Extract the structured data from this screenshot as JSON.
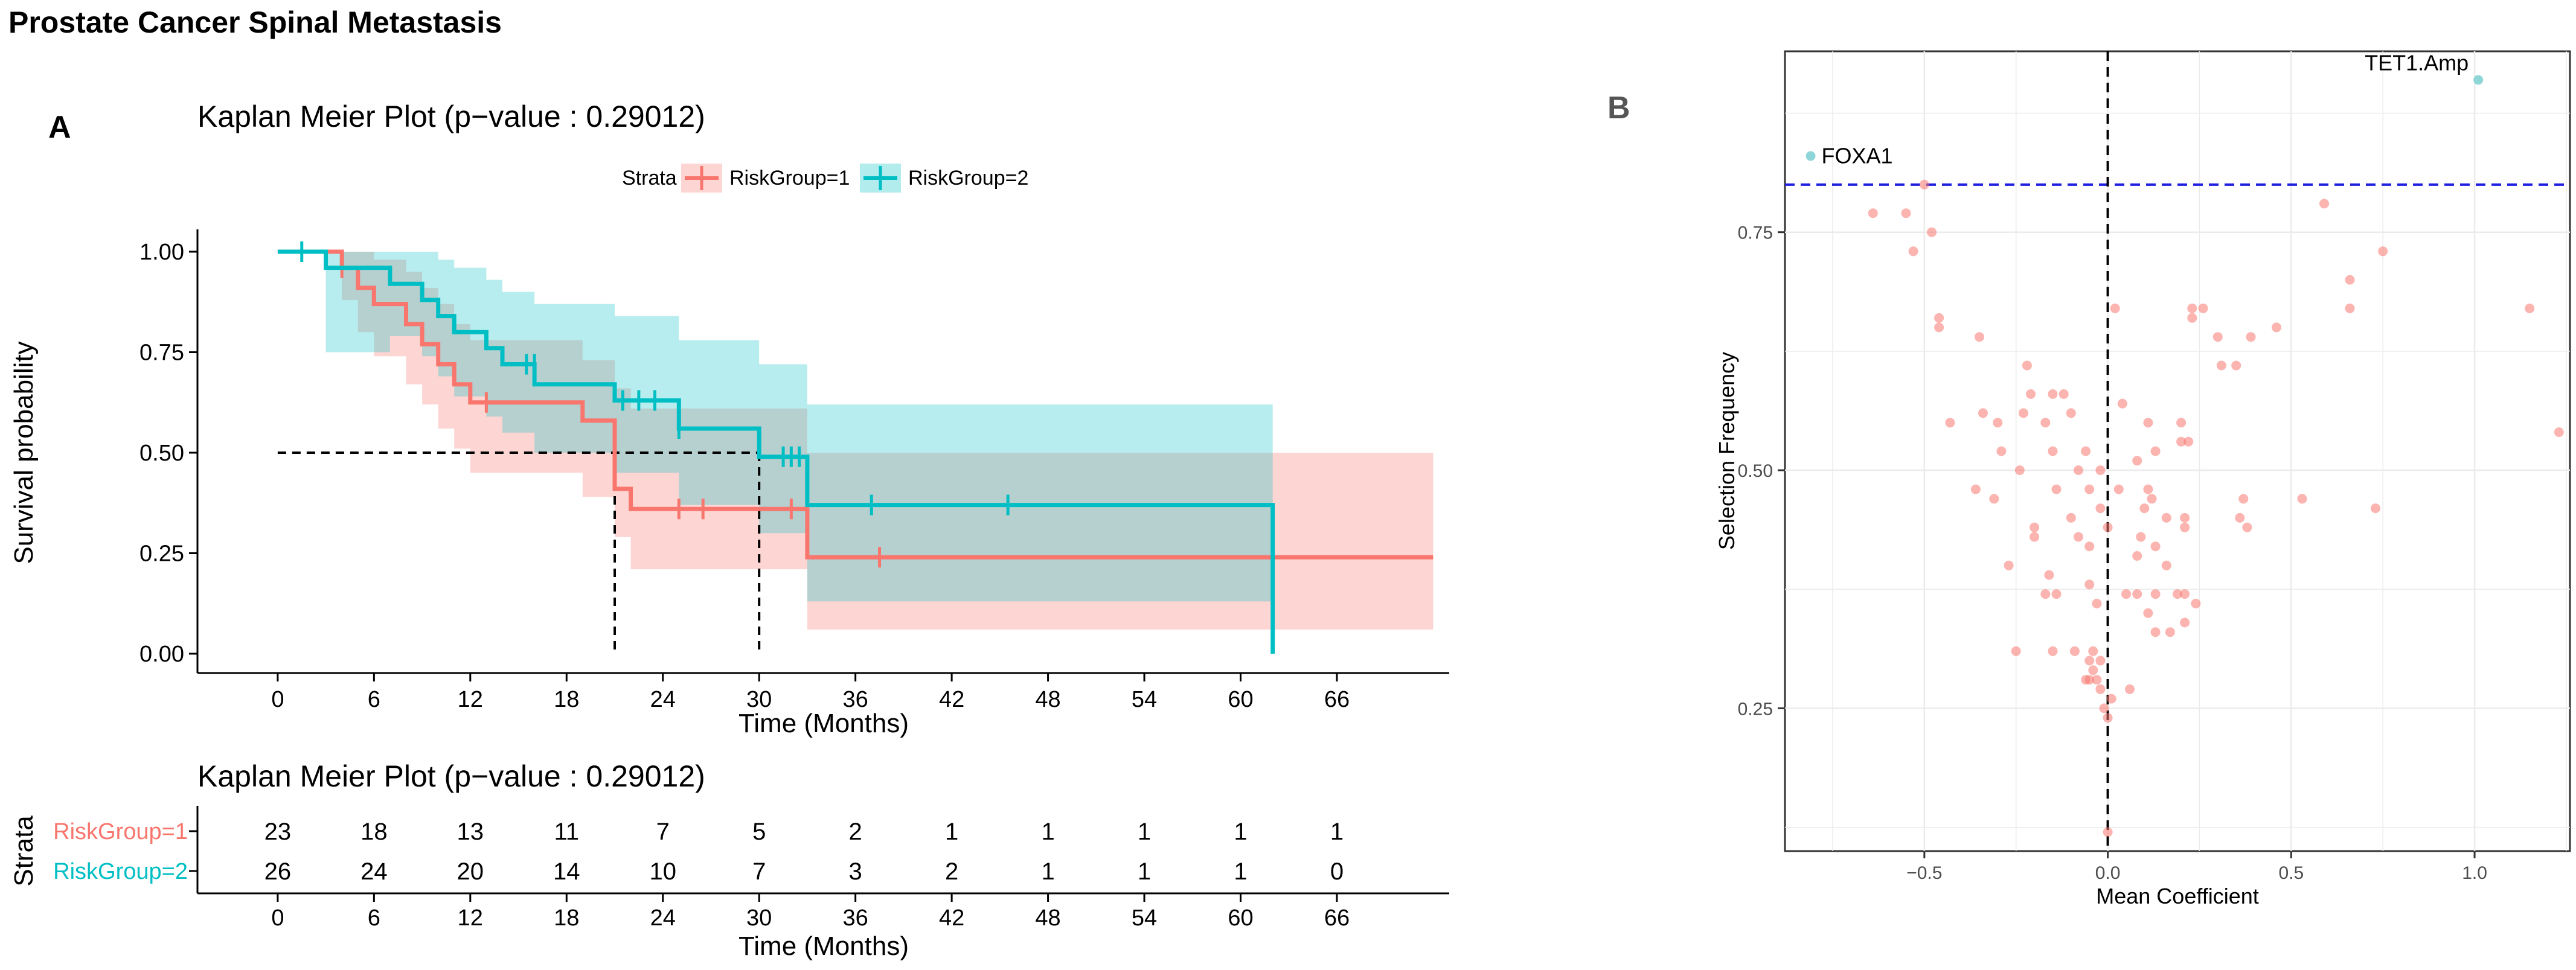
{
  "figure_title": "Prostate Cancer Spinal Metastasis",
  "panel_a_letter": "A",
  "panel_b_letter": "B",
  "colors": {
    "group1": "#F8766D",
    "group2": "#00BFC4",
    "overlap": "#C6C6C6",
    "median": "#000000",
    "threshold": "#1F1FE0",
    "highlight": "#8FD6D8"
  },
  "chart_data": [
    {
      "type": "line",
      "subtype": "kaplan-meier",
      "title": "Kaplan Meier Plot (p−value : 0.29012)",
      "xlabel": "Time (Months)",
      "ylabel": "Survival probability",
      "xlim": [
        -5,
        73
      ],
      "ylim": [
        0,
        1
      ],
      "x_ticks": [
        0,
        6,
        12,
        18,
        24,
        30,
        36,
        42,
        48,
        54,
        60,
        66
      ],
      "y_ticks": [
        0.0,
        0.25,
        0.5,
        0.75,
        1.0
      ],
      "y_tick_labels": [
        "0.00",
        "0.25",
        "0.50",
        "0.75",
        "1.00"
      ],
      "legend": {
        "title": "Strata",
        "position": "top",
        "entries": [
          "RiskGroup=1",
          "RiskGroup=2"
        ]
      },
      "median_survival": [
        {
          "group": "RiskGroup=1",
          "time": 21
        },
        {
          "group": "RiskGroup=2",
          "time": 30
        }
      ],
      "series": [
        {
          "name": "RiskGroup=1",
          "color": "#F8766D",
          "steps": [
            [
              0,
              1.0
            ],
            [
              4,
              0.96
            ],
            [
              5,
              0.91
            ],
            [
              6,
              0.87
            ],
            [
              8,
              0.82
            ],
            [
              9,
              0.77
            ],
            [
              10,
              0.72
            ],
            [
              11,
              0.67
            ],
            [
              12,
              0.625
            ],
            [
              19,
              0.58
            ],
            [
              21,
              0.51
            ],
            [
              21,
              0.41
            ],
            [
              22,
              0.36
            ],
            [
              33,
              0.24
            ],
            [
              72,
              0.24
            ]
          ],
          "ci_upper": [
            [
              0,
              1.0
            ],
            [
              4,
              1.0
            ],
            [
              5,
              1.0
            ],
            [
              6,
              0.98
            ],
            [
              8,
              0.95
            ],
            [
              9,
              0.91
            ],
            [
              10,
              0.87
            ],
            [
              11,
              0.82
            ],
            [
              12,
              0.78
            ],
            [
              19,
              0.73
            ],
            [
              21,
              0.66
            ],
            [
              22,
              0.61
            ],
            [
              33,
              0.5
            ],
            [
              72,
              0.5
            ]
          ],
          "ci_lower": [
            [
              0,
              1.0
            ],
            [
              4,
              0.88
            ],
            [
              5,
              0.8
            ],
            [
              6,
              0.74
            ],
            [
              8,
              0.67
            ],
            [
              9,
              0.62
            ],
            [
              10,
              0.56
            ],
            [
              11,
              0.51
            ],
            [
              12,
              0.45
            ],
            [
              19,
              0.39
            ],
            [
              21,
              0.29
            ],
            [
              22,
              0.21
            ],
            [
              33,
              0.06
            ],
            [
              72,
              0.06
            ]
          ],
          "censored": [
            [
              4,
              0.96
            ],
            [
              13,
              0.625
            ],
            [
              25,
              0.36
            ],
            [
              26.5,
              0.36
            ],
            [
              32,
              0.36
            ],
            [
              37.5,
              0.24
            ]
          ]
        },
        {
          "name": "RiskGroup=2",
          "color": "#00BFC4",
          "steps": [
            [
              0,
              1.0
            ],
            [
              3,
              0.96
            ],
            [
              7,
              0.92
            ],
            [
              9,
              0.88
            ],
            [
              10,
              0.84
            ],
            [
              11,
              0.8
            ],
            [
              13,
              0.76
            ],
            [
              14,
              0.72
            ],
            [
              16,
              0.67
            ],
            [
              21,
              0.63
            ],
            [
              25,
              0.56
            ],
            [
              30,
              0.49
            ],
            [
              33,
              0.37
            ],
            [
              62,
              0.37
            ],
            [
              62,
              0.0
            ]
          ],
          "ci_upper": [
            [
              0,
              1.0
            ],
            [
              3,
              1.0
            ],
            [
              7,
              1.0
            ],
            [
              9,
              1.0
            ],
            [
              10,
              0.98
            ],
            [
              11,
              0.96
            ],
            [
              13,
              0.93
            ],
            [
              14,
              0.9
            ],
            [
              16,
              0.87
            ],
            [
              21,
              0.84
            ],
            [
              25,
              0.78
            ],
            [
              30,
              0.72
            ],
            [
              33,
              0.62
            ],
            [
              62,
              0.62
            ]
          ],
          "ci_lower": [
            [
              0,
              1.0
            ],
            [
              3,
              0.75
            ],
            [
              7,
              0.79
            ],
            [
              9,
              0.74
            ],
            [
              10,
              0.69
            ],
            [
              11,
              0.64
            ],
            [
              13,
              0.59
            ],
            [
              14,
              0.55
            ],
            [
              16,
              0.5
            ],
            [
              21,
              0.45
            ],
            [
              25,
              0.37
            ],
            [
              30,
              0.3
            ],
            [
              33,
              0.13
            ],
            [
              62,
              0.13
            ]
          ],
          "censored": [
            [
              1.5,
              1.0
            ],
            [
              15.5,
              0.72
            ],
            [
              16,
              0.72
            ],
            [
              21.5,
              0.63
            ],
            [
              22.5,
              0.63
            ],
            [
              23.5,
              0.63
            ],
            [
              25,
              0.56
            ],
            [
              31.5,
              0.49
            ],
            [
              32,
              0.49
            ],
            [
              32.5,
              0.49
            ],
            [
              37,
              0.37
            ],
            [
              45.5,
              0.37
            ]
          ]
        }
      ]
    },
    {
      "type": "table",
      "title": "Kaplan Meier Plot (p−value : 0.29012)",
      "xlabel": "Time (Months)",
      "ylabel": "Strata",
      "x_ticks": [
        0,
        6,
        12,
        18,
        24,
        30,
        36,
        42,
        48,
        54,
        60,
        66
      ],
      "rows": [
        {
          "name": "RiskGroup=1",
          "color": "#F8766D",
          "values": [
            23,
            18,
            13,
            11,
            7,
            5,
            2,
            1,
            1,
            1,
            1,
            1
          ]
        },
        {
          "name": "RiskGroup=2",
          "color": "#00BFC4",
          "values": [
            26,
            24,
            20,
            14,
            10,
            7,
            3,
            2,
            1,
            1,
            1,
            0
          ]
        }
      ]
    },
    {
      "type": "scatter",
      "title": "",
      "xlabel": "Mean Coefficient",
      "ylabel": "Selection Frequency",
      "xlim": [
        -0.88,
        1.26
      ],
      "ylim": [
        0.1,
        0.94
      ],
      "x_ticks": [
        -0.5,
        0.0,
        0.5,
        1.0
      ],
      "x_tick_labels": [
        "−0.5",
        "0.0",
        "0.5",
        "1.0"
      ],
      "y_ticks": [
        0.25,
        0.5,
        0.75
      ],
      "y_tick_labels": [
        "0.25",
        "0.50",
        "0.75"
      ],
      "grid": true,
      "threshold_y": 0.8,
      "reference_x": 0.0,
      "labeled_points": [
        {
          "label": "TET1.Amp",
          "x": 1.01,
          "y": 0.91
        },
        {
          "label": "FOXA1",
          "x": -0.81,
          "y": 0.83
        }
      ],
      "points": [
        [
          -0.64,
          0.77
        ],
        [
          -0.55,
          0.77
        ],
        [
          -0.53,
          0.73
        ],
        [
          -0.5,
          0.8
        ],
        [
          -0.48,
          0.75
        ],
        [
          -0.46,
          0.66
        ],
        [
          -0.46,
          0.65
        ],
        [
          -0.35,
          0.64
        ],
        [
          -0.43,
          0.55
        ],
        [
          -0.34,
          0.56
        ],
        [
          -0.36,
          0.48
        ],
        [
          -0.31,
          0.47
        ],
        [
          -0.22,
          0.61
        ],
        [
          -0.21,
          0.58
        ],
        [
          -0.15,
          0.58
        ],
        [
          -0.12,
          0.58
        ],
        [
          -0.23,
          0.56
        ],
        [
          -0.1,
          0.56
        ],
        [
          -0.17,
          0.55
        ],
        [
          -0.3,
          0.55
        ],
        [
          -0.29,
          0.52
        ],
        [
          -0.15,
          0.52
        ],
        [
          -0.06,
          0.52
        ],
        [
          -0.24,
          0.5
        ],
        [
          -0.08,
          0.5
        ],
        [
          -0.02,
          0.5
        ],
        [
          -0.14,
          0.48
        ],
        [
          -0.05,
          0.48
        ],
        [
          -0.02,
          0.46
        ],
        [
          -0.1,
          0.45
        ],
        [
          -0.2,
          0.44
        ],
        [
          -0.2,
          0.43
        ],
        [
          -0.08,
          0.43
        ],
        [
          -0.05,
          0.42
        ],
        [
          -0.27,
          0.4
        ],
        [
          -0.16,
          0.39
        ],
        [
          -0.17,
          0.37
        ],
        [
          -0.14,
          0.37
        ],
        [
          -0.05,
          0.38
        ],
        [
          -0.03,
          0.36
        ],
        [
          -0.25,
          0.31
        ],
        [
          -0.15,
          0.31
        ],
        [
          -0.09,
          0.31
        ],
        [
          -0.04,
          0.31
        ],
        [
          -0.05,
          0.3
        ],
        [
          -0.04,
          0.29
        ],
        [
          -0.02,
          0.3
        ],
        [
          -0.05,
          0.28
        ],
        [
          -0.03,
          0.28
        ],
        [
          -0.06,
          0.28
        ],
        [
          -0.02,
          0.27
        ],
        [
          0.01,
          0.26
        ],
        [
          -0.01,
          0.25
        ],
        [
          0.0,
          0.24
        ],
        [
          0.06,
          0.27
        ],
        [
          0.0,
          0.12
        ],
        [
          0.02,
          0.67
        ],
        [
          0.23,
          0.67
        ],
        [
          0.26,
          0.67
        ],
        [
          0.23,
          0.66
        ],
        [
          0.3,
          0.64
        ],
        [
          0.39,
          0.64
        ],
        [
          0.46,
          0.65
        ],
        [
          0.31,
          0.61
        ],
        [
          0.35,
          0.61
        ],
        [
          0.59,
          0.78
        ],
        [
          0.75,
          0.73
        ],
        [
          0.66,
          0.7
        ],
        [
          0.66,
          0.67
        ],
        [
          1.15,
          0.67
        ],
        [
          1.23,
          0.54
        ],
        [
          0.04,
          0.57
        ],
        [
          0.11,
          0.55
        ],
        [
          0.2,
          0.55
        ],
        [
          0.2,
          0.53
        ],
        [
          0.22,
          0.53
        ],
        [
          0.08,
          0.51
        ],
        [
          0.13,
          0.52
        ],
        [
          0.03,
          0.48
        ],
        [
          0.11,
          0.48
        ],
        [
          0.12,
          0.47
        ],
        [
          0.1,
          0.46
        ],
        [
          0.16,
          0.45
        ],
        [
          0.21,
          0.45
        ],
        [
          0.21,
          0.44
        ],
        [
          0.09,
          0.43
        ],
        [
          0.13,
          0.42
        ],
        [
          0.08,
          0.41
        ],
        [
          0.16,
          0.4
        ],
        [
          0.37,
          0.47
        ],
        [
          0.36,
          0.45
        ],
        [
          0.53,
          0.47
        ],
        [
          0.73,
          0.46
        ],
        [
          0.38,
          0.44
        ],
        [
          0.13,
          0.37
        ],
        [
          0.05,
          0.37
        ],
        [
          0.08,
          0.37
        ],
        [
          0.19,
          0.37
        ],
        [
          0.21,
          0.37
        ],
        [
          0.24,
          0.36
        ],
        [
          0.11,
          0.35
        ],
        [
          0.13,
          0.33
        ],
        [
          0.21,
          0.34
        ],
        [
          0.17,
          0.33
        ],
        [
          0.0,
          0.44
        ]
      ]
    }
  ]
}
